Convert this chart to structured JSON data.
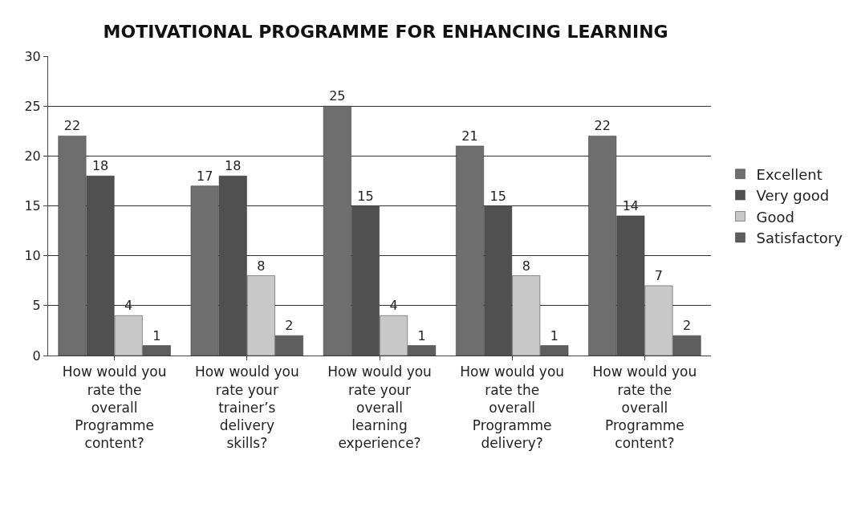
{
  "chart_data": {
    "type": "bar",
    "title": "MOTIVATIONAL PROGRAMME FOR ENHANCING LEARNING",
    "categories": [
      "How would you rate the overall Programme content?",
      "How would you rate your trainer’s delivery skills?",
      "How would you rate your overall learning experience?",
      "How would you rate the overall Programme delivery?",
      "How would you rate the overall Programme content?"
    ],
    "series": [
      {
        "name": "Excellent",
        "color": "#6e6e6e",
        "values": [
          22,
          17,
          25,
          21,
          22
        ]
      },
      {
        "name": "Very good",
        "color": "#505050",
        "values": [
          18,
          18,
          15,
          15,
          14
        ]
      },
      {
        "name": "Good",
        "color": "#c8c8c8",
        "values": [
          4,
          8,
          4,
          8,
          7
        ]
      },
      {
        "name": "Satisfactory",
        "color": "#5e5e5e",
        "values": [
          1,
          2,
          1,
          1,
          2
        ]
      }
    ],
    "ylim": [
      0,
      30
    ],
    "yticks": [
      0,
      5,
      10,
      15,
      20,
      25,
      30
    ],
    "grid": "y",
    "legend": "right",
    "data_labels": true
  }
}
